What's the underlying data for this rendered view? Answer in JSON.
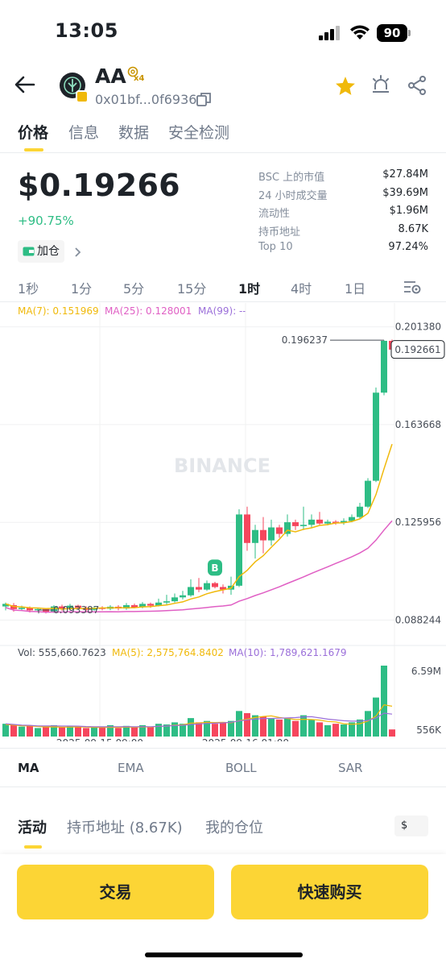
{
  "status_bar": {
    "time": "13:05",
    "battery": "90"
  },
  "header": {
    "token_symbol": "AA",
    "multiplier_badge": "x4",
    "contract_address": "0x01bf...0f6936",
    "icons": [
      "back-arrow-icon",
      "token-logo-icon",
      "copy-icon",
      "star-icon",
      "alert-bell-icon",
      "share-icon"
    ]
  },
  "tabs": [
    "价格",
    "信息",
    "数据",
    "安全检测"
  ],
  "price_block": {
    "price": "$0.19266",
    "change": "+90.75%",
    "position_button": "加仓"
  },
  "stats": [
    {
      "label": "BSC 上的市值",
      "value": "$27.84M"
    },
    {
      "label": "24 小时成交量",
      "value": "$39.69M"
    },
    {
      "label": "流动性",
      "value": "$1.96M"
    },
    {
      "label": "持币地址",
      "value": "8.67K"
    },
    {
      "label": "Top 10",
      "value": "97.24%"
    }
  ],
  "intervals": [
    "1秒",
    "1分",
    "5分",
    "15分",
    "1时",
    "4时",
    "1日"
  ],
  "active_interval": "1时",
  "ma_legend": {
    "ma7": "MA(7): 0.151969",
    "ma25": "MA(25): 0.128001",
    "ma99": "MA(99): --"
  },
  "vol_legend": {
    "vol": "Vol: 555,660.7623",
    "ma5": "MA(5): 2,575,764.8402",
    "ma10": "MA(10): 1,789,621.1679"
  },
  "colors": {
    "up": "#2ebd85",
    "down": "#f6465d",
    "ma7": "#f0b90b",
    "ma25": "#e05fc4",
    "ma10": "#9b6fd9",
    "accent": "#fcd535"
  },
  "chart_data": {
    "type": "candlestick",
    "y_axis_ticks": [
      "0.201380",
      "0.163668",
      "0.125956",
      "0.088244"
    ],
    "ylim": [
      0.08,
      0.205
    ],
    "current_price_label": "0.192661",
    "high_marker": "0.196237",
    "low_marker": "0.093387",
    "x_tick_labels": [
      "2025-09-15 09:00",
      "2025-09-16 01:00"
    ],
    "volume_axis_ticks": [
      "6.59M",
      "556K"
    ],
    "watermark": "BINANCE",
    "buy_marker": "B",
    "candles": [
      [
        0.0935,
        0.0945,
        0.092,
        0.095
      ],
      [
        0.094,
        0.0925,
        0.0915,
        0.0948
      ],
      [
        0.0925,
        0.093,
        0.0918,
        0.0938
      ],
      [
        0.093,
        0.092,
        0.0912,
        0.0935
      ],
      [
        0.092,
        0.0925,
        0.0915,
        0.093
      ],
      [
        0.0925,
        0.0915,
        0.0908,
        0.0928
      ],
      [
        0.0915,
        0.0935,
        0.091,
        0.094
      ],
      [
        0.0935,
        0.0925,
        0.0918,
        0.0942
      ],
      [
        0.0925,
        0.0938,
        0.092,
        0.0945
      ],
      [
        0.0938,
        0.093,
        0.0925,
        0.0942
      ],
      [
        0.093,
        0.0922,
        0.0916,
        0.0936
      ],
      [
        0.0922,
        0.093,
        0.0918,
        0.0935
      ],
      [
        0.093,
        0.0926,
        0.092,
        0.0936
      ],
      [
        0.0926,
        0.0934,
        0.0921,
        0.094
      ],
      [
        0.0934,
        0.0927,
        0.092,
        0.094
      ],
      [
        0.0927,
        0.094,
        0.0922,
        0.0948
      ],
      [
        0.094,
        0.0932,
        0.0928,
        0.0946
      ],
      [
        0.0932,
        0.0945,
        0.0928,
        0.0952
      ],
      [
        0.0945,
        0.0938,
        0.093,
        0.095
      ],
      [
        0.0938,
        0.095,
        0.0935,
        0.0965
      ],
      [
        0.095,
        0.0955,
        0.0942,
        0.098
      ],
      [
        0.0955,
        0.097,
        0.095,
        0.0985
      ],
      [
        0.097,
        0.0978,
        0.0962,
        0.0995
      ],
      [
        0.0978,
        0.101,
        0.0972,
        0.104
      ],
      [
        0.101,
        0.1,
        0.099,
        0.1045
      ],
      [
        0.1,
        0.1025,
        0.0995,
        0.1035
      ],
      [
        0.1025,
        0.101,
        0.1005,
        0.103
      ],
      [
        0.101,
        0.1,
        0.0985,
        0.102
      ],
      [
        0.1,
        0.1015,
        0.098,
        0.105
      ],
      [
        0.1015,
        0.129,
        0.101,
        0.131
      ],
      [
        0.129,
        0.118,
        0.115,
        0.132
      ],
      [
        0.118,
        0.123,
        0.112,
        0.125
      ],
      [
        0.123,
        0.119,
        0.114,
        0.128
      ],
      [
        0.119,
        0.124,
        0.117,
        0.127
      ],
      [
        0.124,
        0.1215,
        0.12,
        0.125
      ],
      [
        0.1215,
        0.126,
        0.1205,
        0.129
      ],
      [
        0.126,
        0.1245,
        0.123,
        0.127
      ],
      [
        0.1245,
        0.125,
        0.123,
        0.132
      ],
      [
        0.125,
        0.127,
        0.124,
        0.129
      ],
      [
        0.127,
        0.1255,
        0.125,
        0.13
      ],
      [
        0.1255,
        0.1262,
        0.1248,
        0.127
      ],
      [
        0.1262,
        0.1258,
        0.125,
        0.1268
      ],
      [
        0.1258,
        0.1265,
        0.125,
        0.1275
      ],
      [
        0.1265,
        0.128,
        0.126,
        0.129
      ],
      [
        0.128,
        0.132,
        0.1275,
        0.1335
      ],
      [
        0.132,
        0.142,
        0.1315,
        0.143
      ],
      [
        0.142,
        0.176,
        0.1415,
        0.178
      ],
      [
        0.176,
        0.196,
        0.175,
        0.1962
      ],
      [
        0.196,
        0.1926,
        0.192,
        0.1965
      ]
    ],
    "volume_relative": [
      0.18,
      0.16,
      0.14,
      0.15,
      0.12,
      0.14,
      0.16,
      0.13,
      0.15,
      0.14,
      0.12,
      0.14,
      0.13,
      0.16,
      0.12,
      0.15,
      0.13,
      0.16,
      0.14,
      0.18,
      0.17,
      0.2,
      0.18,
      0.26,
      0.2,
      0.22,
      0.18,
      0.2,
      0.22,
      0.36,
      0.33,
      0.3,
      0.28,
      0.26,
      0.24,
      0.26,
      0.22,
      0.3,
      0.24,
      0.2,
      0.16,
      0.18,
      0.17,
      0.2,
      0.24,
      0.36,
      0.55,
      1.0,
      0.1
    ]
  },
  "indicators": [
    "MA",
    "EMA",
    "BOLL",
    "SAR"
  ],
  "bottom_tabs": [
    "活动",
    "持币地址 (8.67K)",
    "我的仓位"
  ],
  "currency_toggle": "$",
  "actions": {
    "trade": "交易",
    "quick_buy": "快速购买"
  }
}
